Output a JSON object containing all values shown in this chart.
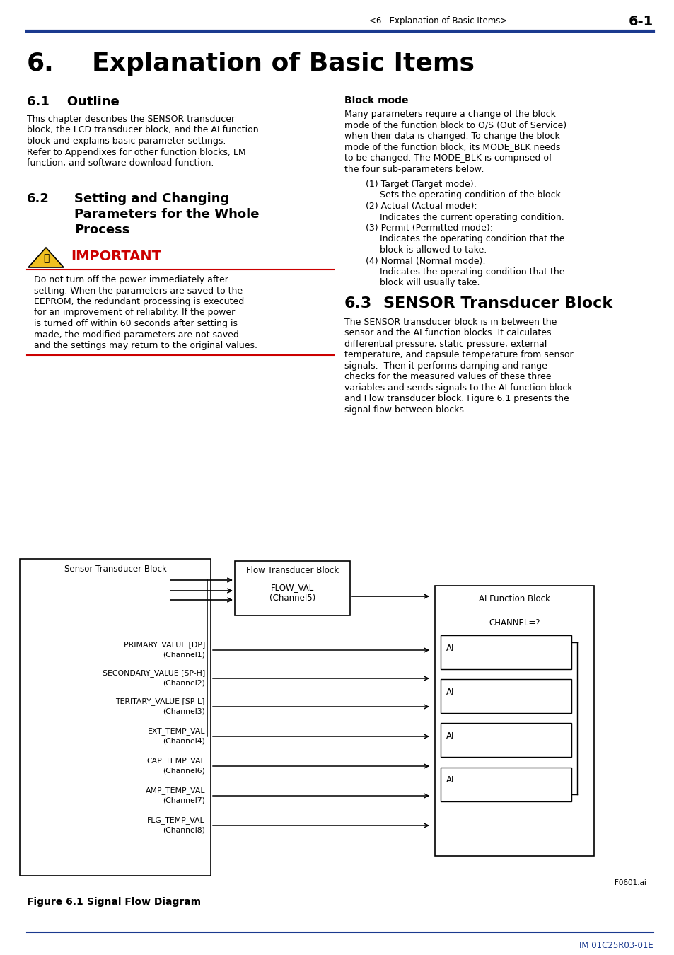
{
  "page_header_text": "<6.  Explanation of Basic Items>",
  "page_number": "6-1",
  "section_61_title": "6.1    Outline",
  "section_61_body": "This chapter describes the SENSOR transducer\nblock, the LCD transducer block, and the AI function\nblock and explains basic parameter settings.\nRefer to Appendixes for other function blocks, LM\nfunction, and software download function.",
  "section_62_num": "6.2",
  "section_62_line1": "Setting and Changing",
  "section_62_line2": "Parameters for the Whole",
  "section_62_line3": "Process",
  "important_label": "IMPORTANT",
  "important_body_lines": [
    "Do not turn off the power immediately after",
    "setting. When the parameters are saved to the",
    "EEPROM, the redundant processing is executed",
    "for an improvement of reliability. If the power",
    "is turned off within 60 seconds after setting is",
    "made, the modified parameters are not saved",
    "and the settings may return to the original values."
  ],
  "block_mode_title": "Block mode",
  "block_mode_body_lines": [
    "Many parameters require a change of the block",
    "mode of the function block to O/S (Out of Service)",
    "when their data is changed. To change the block",
    "mode of the function block, its MODE_BLK needs",
    "to be changed. The MODE_BLK is comprised of",
    "the four sub-parameters below:"
  ],
  "bm_items": [
    [
      "(1) Target (Target mode):",
      "Sets the operating condition of the block."
    ],
    [
      "(2) Actual (Actual mode):",
      "Indicates the current operating condition."
    ],
    [
      "(3) Permit (Permitted mode):",
      "Indicates the operating condition that the",
      "block is allowed to take."
    ],
    [
      "(4) Normal (Normal mode):",
      "Indicates the operating condition that the",
      "block will usually take."
    ]
  ],
  "section_63_num": "6.3",
  "section_63_title2": "SENSOR Transducer Block",
  "section_63_body_lines": [
    "The SENSOR transducer block is in between the",
    "sensor and the AI function blocks. It calculates",
    "differential pressure, static pressure, external",
    "temperature, and capsule temperature from sensor",
    "signals.  Then it performs damping and range",
    "checks for the measured values of these three",
    "variables and sends signals to the AI function block",
    "and Flow transducer block. Figure 6.1 presents the",
    "signal flow between blocks."
  ],
  "figure_label": "Figure 6.1",
  "figure_title": "Signal Flow Diagram",
  "figure_note": "F0601.ai",
  "footer_text": "IM 01C25R03-01E",
  "header_line_color": "#1b3a8f",
  "footer_line_color": "#1b3a8f",
  "important_color": "#cc0000",
  "important_line_color": "#cc0000",
  "text_color": "#000000",
  "background_color": "#ffffff",
  "blue_color": "#1b3a8f",
  "chapter_num": "6.",
  "chapter_text": "Explanation of Basic Items"
}
